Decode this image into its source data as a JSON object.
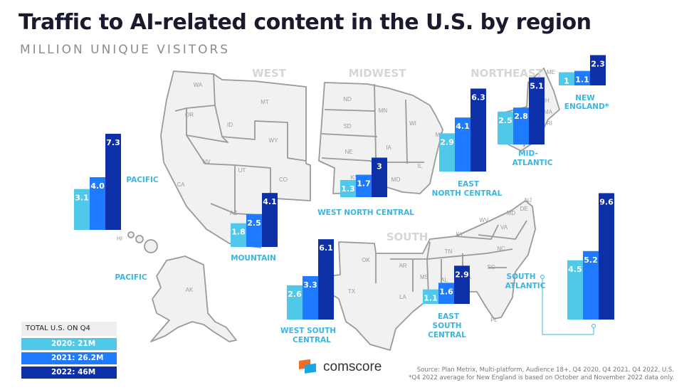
{
  "title": "Traffic to AI-related content in the U.S. by region",
  "subtitle": "MILLION UNIQUE VISITORS",
  "colors": {
    "2020": "#4fc8ea",
    "2021": "#1e7bff",
    "2022": "#0d2fa8",
    "region_label": "#3ab6e0",
    "map_fill": "#f1f1f1",
    "map_stroke": "#9a9a9a"
  },
  "chart_data": {
    "type": "bar",
    "series_names": [
      "2020",
      "2021",
      "2022"
    ],
    "regions": [
      {
        "name": "PACIFIC",
        "values": [
          3.1,
          4.0,
          7.3
        ],
        "labels": [
          "3.1",
          "4.0",
          "7.3"
        ]
      },
      {
        "name": "MOUNTAIN",
        "values": [
          1.8,
          2.5,
          4.1
        ],
        "labels": [
          "1.8",
          "2.5",
          "4.1"
        ]
      },
      {
        "name": "WEST NORTH CENTRAL",
        "values": [
          1.3,
          1.7,
          3
        ],
        "labels": [
          "1.3",
          "1.7",
          "3"
        ]
      },
      {
        "name": "EAST NORTH CENTRAL",
        "values": [
          2.9,
          4.1,
          6.3
        ],
        "labels": [
          "2.9",
          "4.1",
          "6.3"
        ]
      },
      {
        "name": "MID-ATLANTIC",
        "values": [
          2.5,
          2.8,
          5.1
        ],
        "labels": [
          "2.5",
          "2.8",
          "5.1"
        ]
      },
      {
        "name": "NEW ENGLAND",
        "values": [
          1,
          1.1,
          2.3
        ],
        "labels": [
          "1",
          "1.1",
          "2.3"
        ]
      },
      {
        "name": "WEST SOUTH CENTRAL",
        "values": [
          2.6,
          3.3,
          6.1
        ],
        "labels": [
          "2.6",
          "3.3",
          "6.1"
        ]
      },
      {
        "name": "EAST SOUTH CENTRAL",
        "values": [
          1.1,
          1.6,
          2.9
        ],
        "labels": [
          "1.1",
          "1.6",
          "2.9"
        ]
      },
      {
        "name": "SOUTH ATLANTIC",
        "values": [
          4.5,
          5.2,
          9.6
        ],
        "labels": [
          "4.5",
          "5.2",
          "9.6"
        ]
      }
    ]
  },
  "region_labels": {
    "pacific": "PACIFIC",
    "pacific2": "PACIFIC",
    "mountain": "MOUNTAIN",
    "wnc": "WEST NORTH CENTRAL",
    "enc1": "EAST",
    "enc2": "NORTH CENTRAL",
    "mid1": "MID-",
    "mid2": "ATLANTIC",
    "ne1": "NEW",
    "ne2": "ENGLAND*",
    "wsc1": "WEST SOUTH",
    "wsc2": "CENTRAL",
    "esc1": "EAST",
    "esc2": "SOUTH",
    "esc3": "CENTRAL",
    "sa1": "SOUTH",
    "sa2": "ATLANTIC"
  },
  "census_regions": {
    "west": "WEST",
    "midwest": "MIDWEST",
    "northeast": "NORTHEAST",
    "south": "SOUTH"
  },
  "states": {
    "wa": "WA",
    "or": "OR",
    "ca": "CA",
    "nv": "NV",
    "id": "ID",
    "mt": "MT",
    "wy": "WY",
    "ut": "UT",
    "co": "CO",
    "az": "AZ",
    "nm": "NM",
    "ak": "AK",
    "hi": "HI",
    "nd": "ND",
    "sd": "SD",
    "ne": "NE",
    "ks": "KS",
    "mn": "MN",
    "ia": "IA",
    "mo": "MO",
    "wi": "WI",
    "il": "IL",
    "mi": "MI",
    "in": "IN",
    "oh": "OH",
    "ok": "OK",
    "tx": "TX",
    "ar": "AR",
    "la": "LA",
    "ms": "MS",
    "al": "AL",
    "tn": "TN",
    "ky": "KY",
    "ga": "GA",
    "fl": "FL",
    "sc": "SC",
    "nc": "NC",
    "va": "VA",
    "wv": "WV",
    "md": "MD",
    "de": "DE",
    "nj": "NJ",
    "pa": "PA",
    "ny": "NY",
    "vt": "VT",
    "nh": "NH",
    "ma": "MA",
    "ct": "CT",
    "ri": "RI",
    "me": "ME"
  },
  "legend": {
    "header": "TOTAL U.S. ON Q4",
    "rows": [
      "2020: 21M",
      "2021: 26.2M",
      "2022: 46M"
    ]
  },
  "logo": {
    "text": "comscore"
  },
  "source": {
    "line1": "Source: Plan Metrix, Multi-platform, Audience 18+, Q4 2020, Q4 2021, Q4 2022, U.S.",
    "line2": "*Q4 2022 average for New England is based on October and November 2022 data only."
  }
}
